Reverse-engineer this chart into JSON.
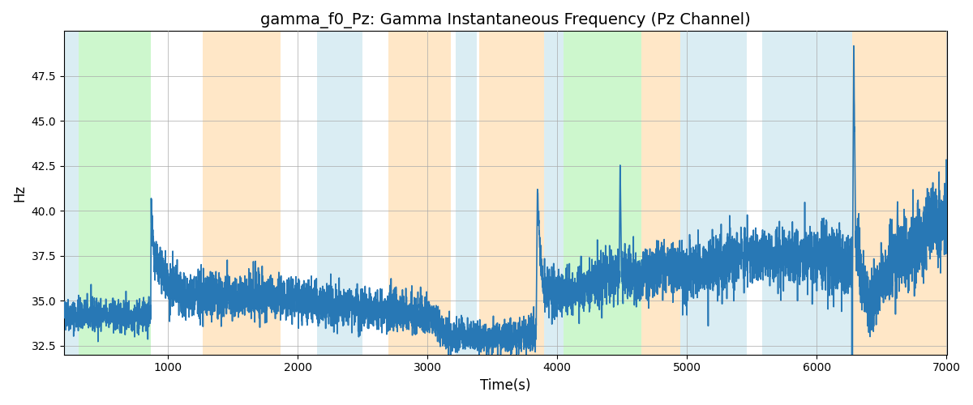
{
  "title": "gamma_f0_Pz: Gamma Instantaneous Frequency (Pz Channel)",
  "xlabel": "Time(s)",
  "ylabel": "Hz",
  "xlim": [
    200,
    7000
  ],
  "ylim": [
    32.0,
    50.0
  ],
  "yticks": [
    32.5,
    35.0,
    37.5,
    40.0,
    42.5,
    45.0,
    47.5
  ],
  "xticks": [
    1000,
    2000,
    3000,
    4000,
    5000,
    6000,
    7000
  ],
  "line_color": "#2878b5",
  "line_width": 1.2,
  "bg_color": "#ffffff",
  "grid_color": "#aaaaaa",
  "title_fontsize": 14,
  "axis_fontsize": 12,
  "colored_regions": [
    {
      "xmin": 200,
      "xmax": 310,
      "color": "#add8e6",
      "alpha": 0.45
    },
    {
      "xmin": 310,
      "xmax": 870,
      "color": "#90ee90",
      "alpha": 0.45
    },
    {
      "xmin": 1270,
      "xmax": 1870,
      "color": "#ffd59a",
      "alpha": 0.55
    },
    {
      "xmin": 2150,
      "xmax": 2500,
      "color": "#add8e6",
      "alpha": 0.45
    },
    {
      "xmin": 2700,
      "xmax": 3180,
      "color": "#ffd59a",
      "alpha": 0.55
    },
    {
      "xmin": 3220,
      "xmax": 3380,
      "color": "#add8e6",
      "alpha": 0.45
    },
    {
      "xmin": 3400,
      "xmax": 3900,
      "color": "#ffd59a",
      "alpha": 0.55
    },
    {
      "xmin": 3900,
      "xmax": 4050,
      "color": "#add8e6",
      "alpha": 0.45
    },
    {
      "xmin": 4050,
      "xmax": 4650,
      "color": "#90ee90",
      "alpha": 0.45
    },
    {
      "xmin": 4650,
      "xmax": 4950,
      "color": "#ffd59a",
      "alpha": 0.55
    },
    {
      "xmin": 4950,
      "xmax": 5460,
      "color": "#add8e6",
      "alpha": 0.45
    },
    {
      "xmin": 5580,
      "xmax": 6270,
      "color": "#add8e6",
      "alpha": 0.45
    },
    {
      "xmin": 6270,
      "xmax": 7000,
      "color": "#ffd59a",
      "alpha": 0.55
    }
  ],
  "seed": 42
}
